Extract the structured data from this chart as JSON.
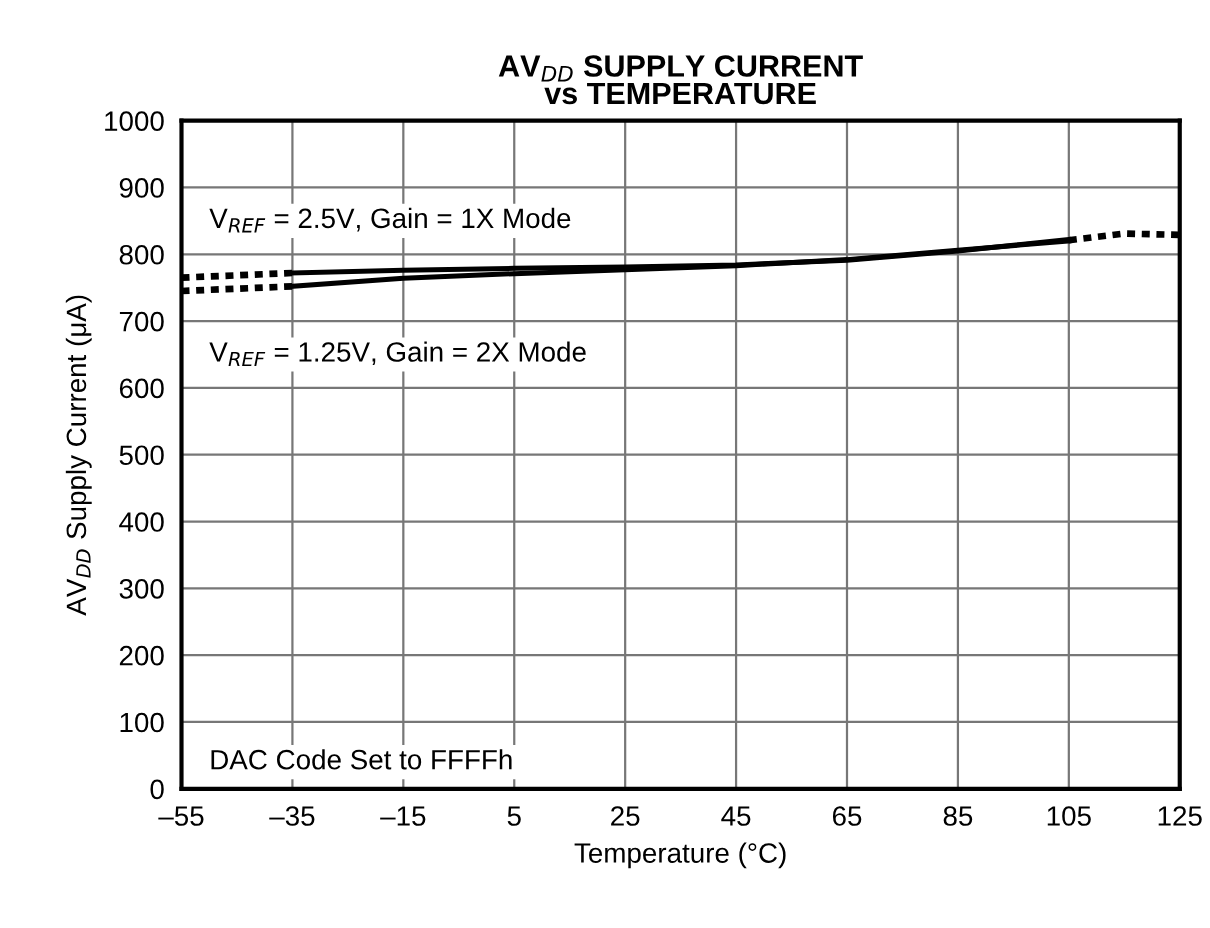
{
  "chart_data": {
    "type": "line",
    "title": "AV$_{DD}$ SUPPLY CURRENT\nvs TEMPERATURE",
    "xlabel": "Temperature (°C)",
    "ylabel": "AV$_{DD}$ Supply Current (μA)",
    "xlim": [
      -55,
      125
    ],
    "xticks": [
      {
        "value": -55,
        "label": "–55"
      },
      {
        "value": -35,
        "label": "–35"
      },
      {
        "value": -15,
        "label": "–15"
      },
      5,
      25,
      45,
      65,
      85,
      105,
      125
    ],
    "ylim": [
      0,
      1000
    ],
    "yticks": [
      0,
      100,
      200,
      300,
      400,
      500,
      600,
      700,
      800,
      900,
      1000
    ],
    "grid": true,
    "series": [
      {
        "color": "#000000",
        "line_style": "solid",
        "x": [
          -35,
          -15,
          5,
          25,
          45,
          65,
          85,
          105
        ],
        "values": [
          772,
          776,
          779,
          781,
          784,
          791,
          805,
          822
        ]
      },
      {
        "color": "#000000",
        "line_style": "solid",
        "x": [
          -35,
          -15,
          5,
          25,
          45,
          65,
          85,
          105
        ],
        "values": [
          752,
          764,
          771,
          777,
          783,
          792,
          806,
          820
        ]
      },
      {
        "color": "#000000",
        "line_style": "dotted",
        "x": [
          -55,
          -35
        ],
        "values": [
          765,
          772
        ]
      },
      {
        "color": "#000000",
        "line_style": "dotted",
        "x": [
          -55,
          -35
        ],
        "values": [
          745,
          752
        ]
      },
      {
        "color": "#000000",
        "line_style": "dotted",
        "x": [
          105,
          115,
          125
        ],
        "values": [
          821,
          831,
          829
        ]
      }
    ],
    "annotations": [
      "V$_{REF}$ = 2.5V, Gain = 1X Mode",
      "V$_{REF}$ = 1.25V, Gain = 2X Mode",
      "DAC Code Set to FFFFh"
    ]
  }
}
